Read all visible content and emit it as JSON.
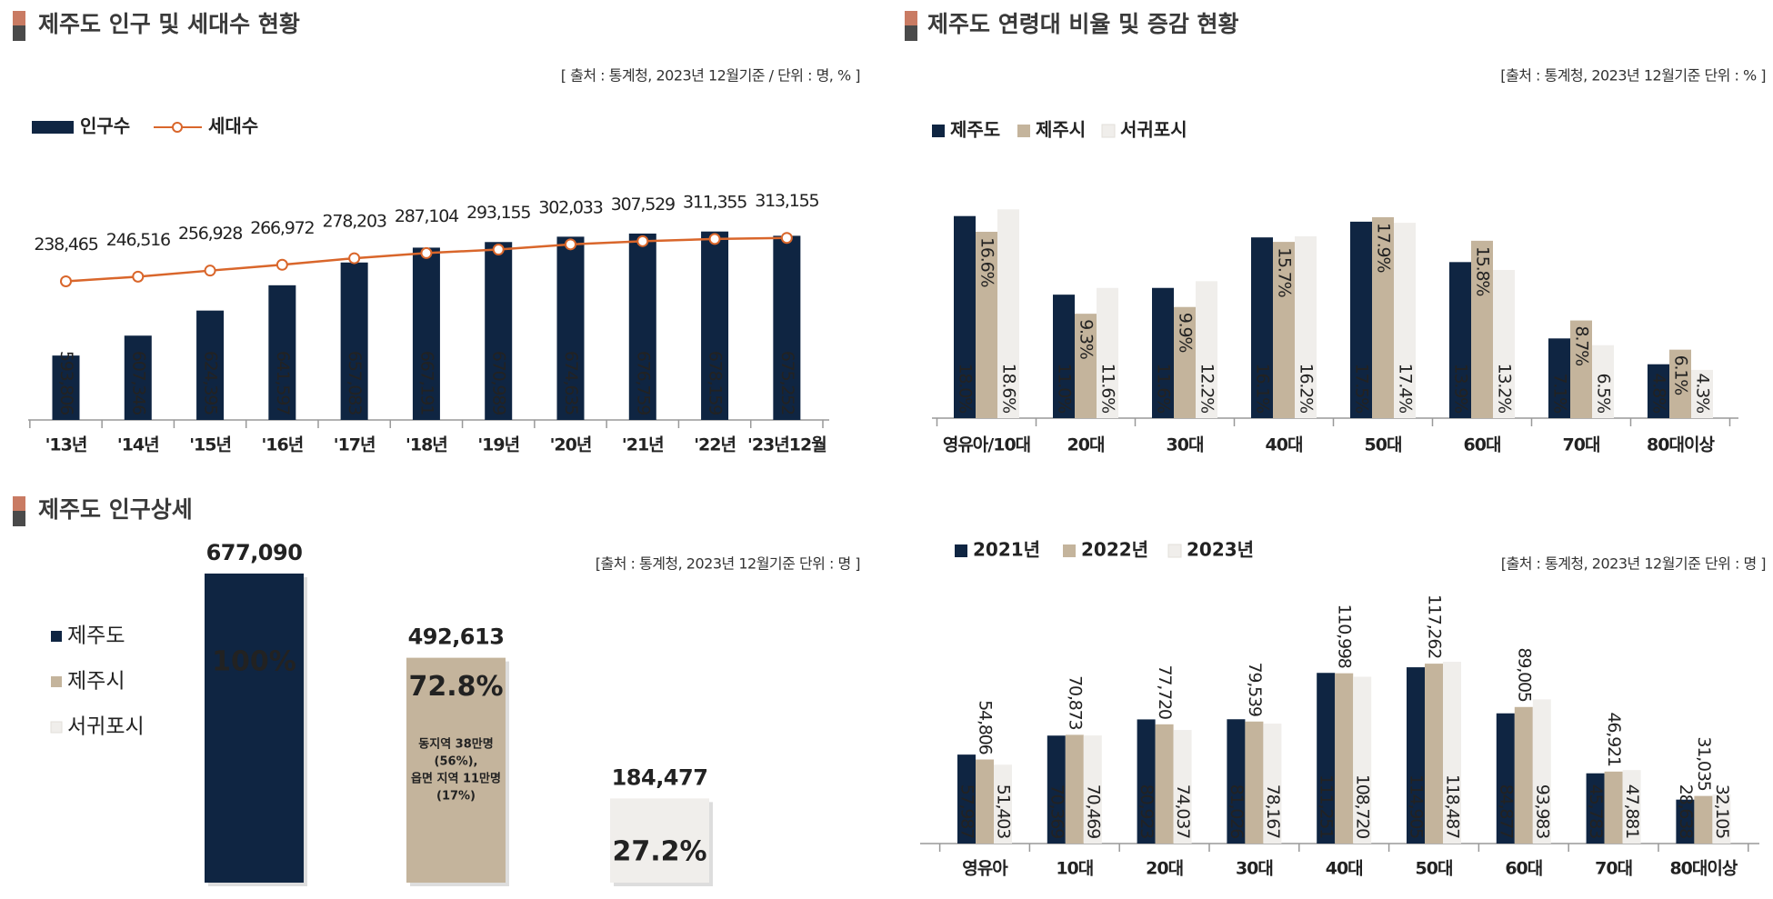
{
  "chart_data": [
    {
      "type": "combo",
      "title": "제주도 인구 및 세대수 현황",
      "source": "[ 출처 : 통계청, 2023년 12월기준 / 단위 : 명, % ]",
      "categories": [
        "'13년",
        "'14년",
        "'15년",
        "'16년",
        "'17년",
        "'18년",
        "'19년",
        "'20년",
        "'21년",
        "'22년",
        "'23년12월"
      ],
      "series": [
        {
          "name": "인구수",
          "color": "#0f2542",
          "label_color": "#ffffff",
          "label_position": "base",
          "values": [
            593806,
            607346,
            624395,
            641597,
            657083,
            667191,
            670989,
            674635,
            676759,
            678159,
            675252
          ],
          "value_labels": [
            "593,806",
            "607,346",
            "624,395",
            "641,597",
            "657,083",
            "667,191",
            "670,989",
            "674,635",
            "676,759",
            "678,159",
            "675,252"
          ]
        },
        {
          "name": "세대수",
          "type": "line",
          "axis": "y2",
          "color": "#d9662b",
          "label_color": "#c00000",
          "values": [
            238465,
            246516,
            256928,
            266972,
            278203,
            287104,
            293155,
            302033,
            307529,
            311355,
            313155
          ],
          "value_labels": [
            "238,465",
            "246,516",
            "256,928",
            "266,972",
            "278,203",
            "287,104",
            "293,155",
            "302,033",
            "307,529",
            "311,355",
            "313,155"
          ]
        }
      ],
      "ylim": [
        550000,
        720000
      ],
      "y2lim": [
        0,
        430000
      ]
    },
    {
      "type": "bar",
      "title": "제주도 연령대 비율 및 증감 현황",
      "source": "[출처 : 통계청, 2023년 12월기준 단위 : % ]",
      "categories": [
        "영유아/10대",
        "20대",
        "30대",
        "40대",
        "50대",
        "60대",
        "70대",
        "80대이상"
      ],
      "series": [
        {
          "name": "제주도",
          "color": "#0f2542",
          "label_color": "#ffffff",
          "label_position": "base",
          "values": [
            18.0,
            11.0,
            11.6,
            16.1,
            17.5,
            13.9,
            7.1,
            4.8
          ],
          "value_labels": [
            "18.0%",
            "11.0%",
            "11.6%",
            "16.1%",
            "17.5%",
            "13.9%",
            "7.1%",
            "4.8%"
          ]
        },
        {
          "name": "제주시",
          "color": "#c4b49c",
          "label_color": "#111111",
          "label_position": "top",
          "values": [
            16.6,
            9.3,
            9.9,
            15.7,
            17.9,
            15.8,
            8.7,
            6.1
          ],
          "value_labels": [
            "16.6%",
            "9.3%",
            "9.9%",
            "15.7%",
            "17.9%",
            "15.8%",
            "8.7%",
            "6.1%"
          ]
        },
        {
          "name": "서귀포시",
          "color": "#f0eeeb",
          "label_color": "#111111",
          "label_position": "base",
          "values": [
            18.6,
            11.6,
            12.2,
            16.2,
            17.4,
            13.2,
            6.5,
            4.3
          ],
          "value_labels": [
            "18.6%",
            "11.6%",
            "12.2%",
            "16.2%",
            "17.4%",
            "13.2%",
            "6.5%",
            "4.3%"
          ]
        }
      ],
      "ylim": [
        0,
        20
      ]
    },
    {
      "type": "bar",
      "title": "제주도 인구상세",
      "source": "[출처 : 통계청, 2023년 12월기준 단위 : 명 ]",
      "series": [
        {
          "name": "제주도",
          "color": "#0f2542",
          "label_color": "#ffffff",
          "values": [
            677090
          ],
          "value_labels": [
            "677,090"
          ],
          "share": [
            100
          ],
          "share_labels": [
            "100%"
          ]
        },
        {
          "name": "제주시",
          "color": "#c4b49c",
          "label_color": "#ffffff",
          "values": [
            492613
          ],
          "value_labels": [
            "492,613"
          ],
          "share": [
            72.8
          ],
          "share_labels": [
            "72.8%"
          ]
        },
        {
          "name": "서귀포시",
          "color": "#f0eeeb",
          "label_color": "#111111",
          "values": [
            184477
          ],
          "value_labels": [
            "184,477"
          ],
          "share": [
            27.2
          ],
          "share_labels": [
            "27.2%"
          ]
        }
      ],
      "annotation": [
        "동지역 38만명",
        "(56%),",
        "읍면 지역 11만명",
        "(17%)"
      ],
      "ylim": [
        0,
        680000
      ]
    },
    {
      "type": "bar",
      "source": "[출처 : 통계청, 2023년 12월기준 단위 : 명 ]",
      "categories": [
        "영유아",
        "10대",
        "20대",
        "30대",
        "40대",
        "50대",
        "60대",
        "70대",
        "80대이상"
      ],
      "series": [
        {
          "name": "2021년",
          "color": "#0f2542",
          "label_color": "#ffffff",
          "label_position": "base",
          "values": [
            57987,
            70369,
            80923,
            81026,
            111251,
            114905,
            84877,
            45783,
            28638
          ],
          "value_labels": [
            "57,987",
            "70,369",
            "80,923",
            "81,026",
            "111,251",
            "114,905",
            "84,877",
            "45,783",
            "28,638"
          ]
        },
        {
          "name": "2022년",
          "color": "#c4b49c",
          "label_color": "#111111",
          "label_position": "outside",
          "values": [
            54806,
            70873,
            77720,
            79539,
            110998,
            117262,
            89005,
            46921,
            31035
          ],
          "value_labels": [
            "54,806",
            "70,873",
            "77,720",
            "79,539",
            "110,998",
            "117,262",
            "89,005",
            "46,921",
            "31,035"
          ]
        },
        {
          "name": "2023년",
          "color": "#f0eeeb",
          "label_color": "#111111",
          "label_position": "base",
          "values": [
            51403,
            70469,
            74037,
            78167,
            108720,
            118487,
            93983,
            47881,
            32105
          ],
          "value_labels": [
            "51,403",
            "70,469",
            "74,037",
            "78,167",
            "108,720",
            "118,487",
            "93,983",
            "47,881",
            "32,105"
          ]
        }
      ],
      "ylim": [
        0,
        130000
      ]
    }
  ]
}
